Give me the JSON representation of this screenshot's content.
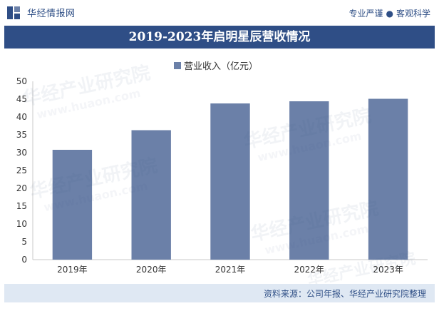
{
  "brand": {
    "name": "华经情报网",
    "icon": "huajing-logo-icon"
  },
  "tagline": {
    "left": "专业严谨",
    "separator": "●",
    "right": "客观科学"
  },
  "title": "2019-2023年启明星辰营收情况",
  "source": "资料来源：公司年报、华经产业研究院整理",
  "watermark": {
    "text": "华经产业研究院",
    "url": "www.huaon.com"
  },
  "colors": {
    "bar": "#6b80a8",
    "title_bg": "#2f4e86",
    "footer_bg": "#dfe8f3",
    "brand": "#2f4f86"
  },
  "chart_data": {
    "type": "bar",
    "categories": [
      "2019年",
      "2020年",
      "2021年",
      "2022年",
      "2023年"
    ],
    "series": [
      {
        "name": "营业收入（亿元）",
        "values": [
          30.8,
          36.3,
          43.8,
          44.4,
          45.1
        ]
      }
    ],
    "ylim": [
      0,
      50
    ],
    "yticks": [
      0,
      5,
      10,
      15,
      20,
      25,
      30,
      35,
      40,
      45,
      50
    ],
    "legend": "top-center",
    "grid": false
  }
}
